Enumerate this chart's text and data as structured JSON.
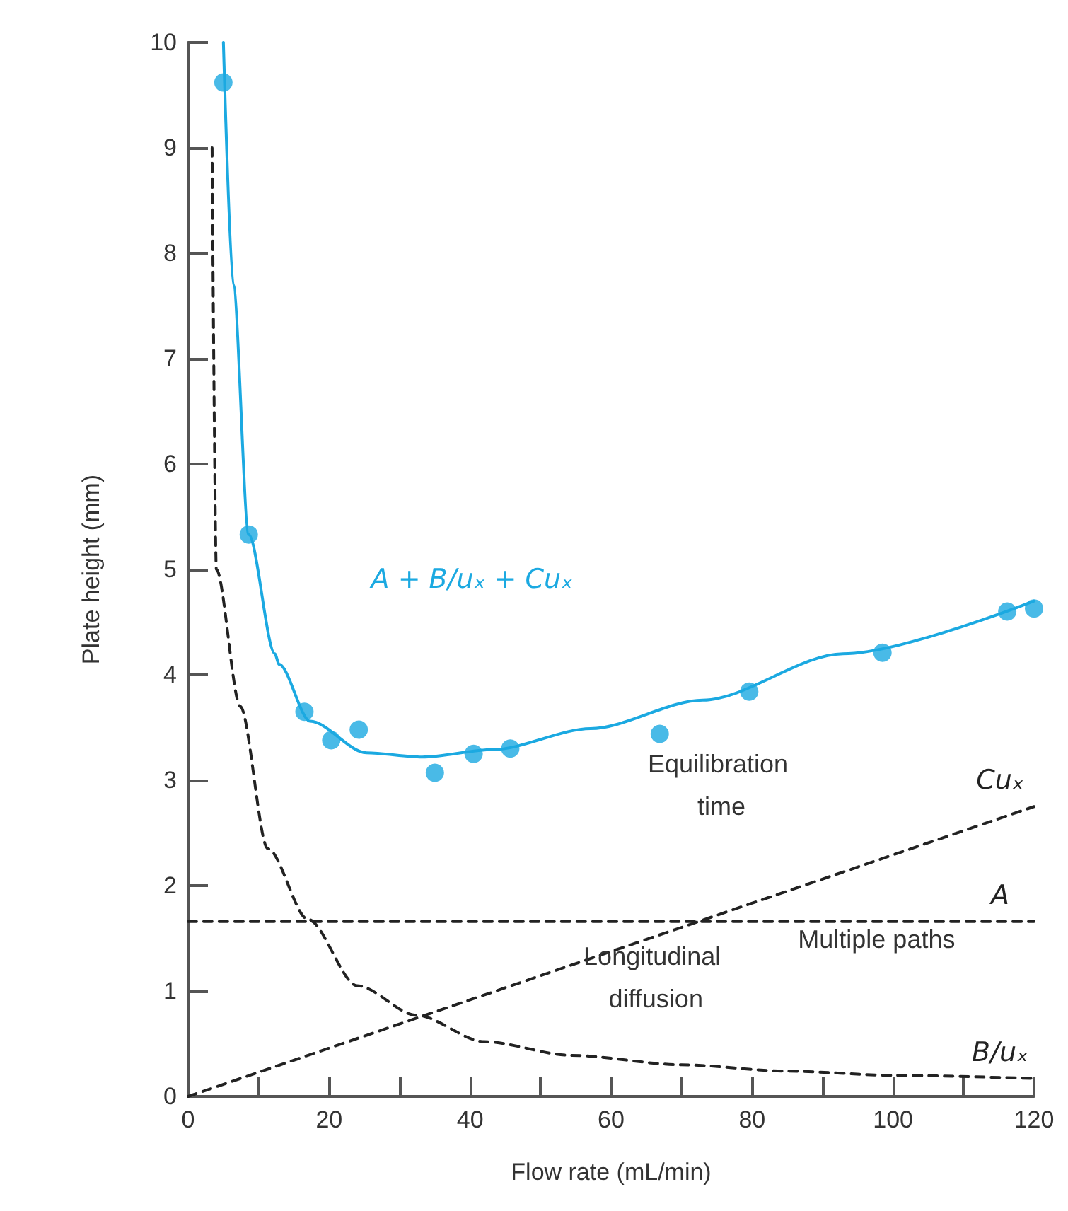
{
  "chart_data": {
    "type": "scatter",
    "xlabel": "Flow rate (mL/min)",
    "ylabel": "Plate height (mm)",
    "xlim": [
      0,
      120
    ],
    "ylim": [
      0,
      10
    ],
    "xticks": [
      0,
      {
        "value": 10,
        "label": null
      },
      20,
      {
        "value": 30,
        "label": null
      },
      40,
      {
        "value": 50,
        "label": null
      },
      60,
      {
        "value": 70,
        "label": null
      },
      80,
      {
        "value": 90,
        "label": null
      },
      100,
      {
        "value": 110,
        "label": null
      },
      120
    ],
    "yticks": [
      0,
      1,
      2,
      3,
      4,
      5,
      6,
      7,
      8,
      9,
      10
    ],
    "grid": false,
    "legend": false,
    "series": [
      {
        "color": "#1ba9e1",
        "marker": "circle",
        "x": [
          5.0,
          8.6,
          16.5,
          20.3,
          24.2,
          35.0,
          40.5,
          45.7,
          66.9,
          79.6,
          98.5,
          116.2,
          120
        ],
        "values": [
          9.62,
          5.33,
          3.65,
          3.38,
          3.48,
          3.07,
          3.25,
          3.3,
          3.44,
          3.84,
          4.21,
          4.6,
          4.63
        ]
      },
      {
        "type": "line",
        "name": "A + B/uₓ + Cuₓ",
        "color": "#1ba9e1",
        "marker": "none",
        "line_style": "solid",
        "x": [
          5.0,
          6.4,
          8.6,
          12.3,
          12.9,
          17.3,
          25.3,
          33.2,
          43.2,
          57.1,
          73,
          92.9,
          120
        ],
        "values": [
          10,
          7.7,
          5.33,
          4.2,
          4.1,
          3.56,
          3.26,
          3.22,
          3.29,
          3.49,
          3.76,
          4.2,
          4.7
        ]
      },
      {
        "type": "line",
        "name": "Cuₓ",
        "color": "#222222",
        "marker": "none",
        "line_style": "dashed",
        "x": [
          0,
          120
        ],
        "values": [
          0,
          2.75
        ]
      },
      {
        "type": "line",
        "name": "A",
        "color": "#222222",
        "marker": "none",
        "line_style": "dashed",
        "x": [
          0,
          120
        ],
        "values": [
          1.66,
          1.66
        ]
      },
      {
        "type": "line",
        "name": "B/uₓ",
        "color": "#222222",
        "marker": "none",
        "line_style": "dashed",
        "x": [
          3.4,
          4.0,
          7.4,
          11.3,
          17,
          24,
          32.4,
          42,
          54.3,
          70,
          85,
          100,
          120
        ],
        "values": [
          9,
          5.0,
          3.7,
          2.35,
          1.68,
          1.05,
          0.77,
          0.52,
          0.39,
          0.3,
          0.24,
          0.2,
          0.17
        ]
      }
    ],
    "annotations": [
      {
        "text": "Equilibration time",
        "x": 89.7,
        "y": 2.08
      },
      {
        "text": "Multiple paths",
        "x": 78.6,
        "y": 1.65
      },
      {
        "text": "Longitudinal diffusion",
        "x": 54.3,
        "y": 0.39
      }
    ]
  }
}
